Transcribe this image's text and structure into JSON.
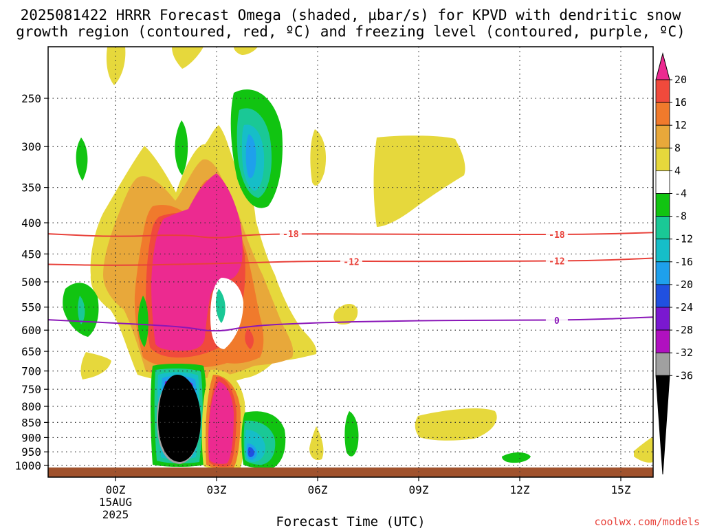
{
  "title_line1": "2025081422 HRRR Forecast Omega (shaded, µbar/s) for KPVD with dendritic snow",
  "title_line2": "growth region (contoured, red, ºC) and freezing level (contoured, purple, ºC)",
  "credit": "coolwx.com/models",
  "chart_data": {
    "type": "heatmap",
    "title": "2025081422 HRRR Forecast Omega (shaded, µbar/s) for KPVD with dendritic snow growth region (contoured, red, ºC) and freezing level (contoured, purple, ºC)",
    "xlabel": "Forecast Time (UTC)",
    "ylabel": "",
    "x_ticks": [
      {
        "label": "00Z",
        "hour": 0,
        "sub": [
          "15AUG",
          "2025"
        ]
      },
      {
        "label": "03Z",
        "hour": 3
      },
      {
        "label": "06Z",
        "hour": 6
      },
      {
        "label": "09Z",
        "hour": 9
      },
      {
        "label": "12Z",
        "hour": 12
      },
      {
        "label": "15Z",
        "hour": 15
      }
    ],
    "xlim": [
      -2,
      16
    ],
    "y_scale": "log-pressure",
    "ylim": [
      1030,
      200
    ],
    "y_ticks": [
      250,
      300,
      350,
      400,
      450,
      500,
      550,
      600,
      650,
      700,
      750,
      800,
      850,
      900,
      950,
      1000
    ],
    "grid": true,
    "colorbar": {
      "units": "µbar/s",
      "labels": [
        "20",
        "16",
        "12",
        "8",
        "4",
        "-4",
        "-8",
        "-12",
        "-16",
        "-20",
        "-24",
        "-28",
        "-32",
        "-36"
      ],
      "colors": [
        "#ec2a90",
        "#f04a3c",
        "#f07a2c",
        "#e8a83a",
        "#e6d83c",
        "#ffffff",
        "#11c411",
        "#1ac896",
        "#16bec8",
        "#1ea0ec",
        "#2050e0",
        "#7a18d0",
        "#b010c0",
        "#a0a0a0",
        "#000000"
      ]
    },
    "contours": [
      {
        "name": "dendritic snow growth region",
        "color": "#e8413a",
        "label": "-18",
        "points": [
          [
            -2,
            417
          ],
          [
            0,
            422
          ],
          [
            2,
            418
          ],
          [
            3,
            425
          ],
          [
            4,
            418
          ],
          [
            6,
            417
          ],
          [
            9,
            418
          ],
          [
            12,
            418
          ],
          [
            14,
            418
          ],
          [
            16,
            415
          ]
        ]
      },
      {
        "name": "dendritic snow growth region",
        "color": "#e8413a",
        "label": "-12",
        "points": [
          [
            -2,
            468
          ],
          [
            0,
            470
          ],
          [
            2,
            468
          ],
          [
            4,
            465
          ],
          [
            6,
            462
          ],
          [
            9,
            463
          ],
          [
            12,
            462
          ],
          [
            14,
            462
          ],
          [
            16,
            457
          ]
        ]
      },
      {
        "name": "freezing level",
        "color": "#8a16b8",
        "label": "0",
        "points": [
          [
            -2,
            577
          ],
          [
            0,
            584
          ],
          [
            2,
            592
          ],
          [
            3,
            605
          ],
          [
            4,
            590
          ],
          [
            6,
            583
          ],
          [
            8,
            580
          ],
          [
            10,
            578
          ],
          [
            12,
            578
          ],
          [
            14,
            577
          ],
          [
            16,
            571
          ]
        ]
      }
    ],
    "contour_labels": [
      {
        "text": "-18",
        "hour": 5.2,
        "p": 417,
        "color": "#e8413a"
      },
      {
        "text": "-18",
        "hour": 13.1,
        "p": 418,
        "color": "#e8413a"
      },
      {
        "text": "-12",
        "hour": 7.0,
        "p": 463,
        "color": "#e8413a"
      },
      {
        "text": "-12",
        "hour": 13.1,
        "p": 462,
        "color": "#e8413a"
      },
      {
        "text": "0",
        "hour": 13.1,
        "p": 578,
        "color": "#8a16b8"
      }
    ],
    "ground_color": "#a0522d"
  }
}
